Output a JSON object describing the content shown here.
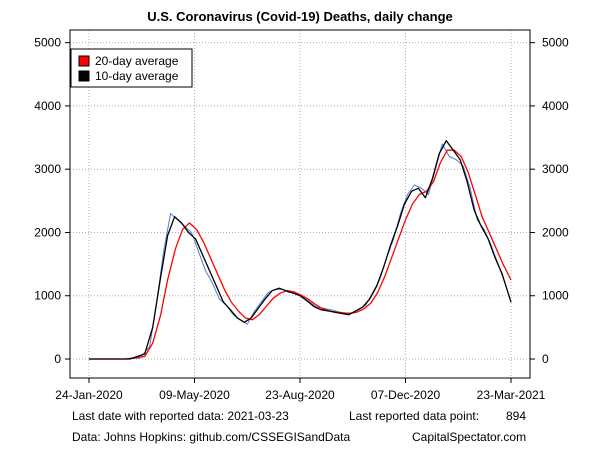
{
  "chart_data": {
    "type": "line",
    "title": "U.S. Coronavirus (Covid-19) Deaths, daily change",
    "xlabel": "",
    "ylabel": "",
    "x_range": [
      "2020-01-24",
      "2021-03-23"
    ],
    "ylim": [
      -300,
      5200
    ],
    "y_ticks": [
      0,
      1000,
      2000,
      3000,
      4000,
      5000
    ],
    "x_ticks": [
      {
        "date": "2020-01-24",
        "label": "24-Jan-2020"
      },
      {
        "date": "2020-05-09",
        "label": "09-May-2020"
      },
      {
        "date": "2020-08-23",
        "label": "23-Aug-2020"
      },
      {
        "date": "2020-12-07",
        "label": "07-Dec-2020"
      },
      {
        "date": "2021-03-23",
        "label": "23-Mar-2021"
      }
    ],
    "grid": true,
    "legend_position": "top-left",
    "legend": [
      {
        "label": "20-day average",
        "color": "#ff0000"
      },
      {
        "label": "10-day average",
        "color": "#000000"
      }
    ],
    "series": [
      {
        "name": "Daily deaths",
        "color": "#4f7fd0",
        "in_legend": false,
        "points": [
          [
            "2020-01-24",
            0
          ],
          [
            "2020-02-15",
            0
          ],
          [
            "2020-03-01",
            2
          ],
          [
            "2020-03-15",
            15
          ],
          [
            "2020-03-25",
            200
          ],
          [
            "2020-04-01",
            900
          ],
          [
            "2020-04-08",
            1700
          ],
          [
            "2020-04-15",
            2300
          ],
          [
            "2020-04-22",
            2200
          ],
          [
            "2020-04-29",
            2100
          ],
          [
            "2020-05-06",
            2000
          ],
          [
            "2020-05-13",
            1700
          ],
          [
            "2020-05-20",
            1400
          ],
          [
            "2020-05-27",
            1200
          ],
          [
            "2020-06-03",
            950
          ],
          [
            "2020-06-10",
            850
          ],
          [
            "2020-06-17",
            700
          ],
          [
            "2020-06-24",
            620
          ],
          [
            "2020-07-01",
            550
          ],
          [
            "2020-07-08",
            750
          ],
          [
            "2020-07-15",
            900
          ],
          [
            "2020-07-22",
            1050
          ],
          [
            "2020-07-29",
            1100
          ],
          [
            "2020-08-05",
            1100
          ],
          [
            "2020-08-12",
            1050
          ],
          [
            "2020-08-19",
            1050
          ],
          [
            "2020-08-26",
            980
          ],
          [
            "2020-09-02",
            900
          ],
          [
            "2020-09-09",
            820
          ],
          [
            "2020-09-16",
            800
          ],
          [
            "2020-09-23",
            780
          ],
          [
            "2020-09-30",
            750
          ],
          [
            "2020-10-07",
            720
          ],
          [
            "2020-10-14",
            730
          ],
          [
            "2020-10-21",
            780
          ],
          [
            "2020-10-28",
            850
          ],
          [
            "2020-11-04",
            1050
          ],
          [
            "2020-11-11",
            1250
          ],
          [
            "2020-11-18",
            1600
          ],
          [
            "2020-11-25",
            1900
          ],
          [
            "2020-12-02",
            2300
          ],
          [
            "2020-12-09",
            2600
          ],
          [
            "2020-12-16",
            2750
          ],
          [
            "2020-12-23",
            2700
          ],
          [
            "2020-12-30",
            2600
          ],
          [
            "2021-01-06",
            3000
          ],
          [
            "2021-01-13",
            3400
          ],
          [
            "2021-01-20",
            3200
          ],
          [
            "2021-01-27",
            3150
          ],
          [
            "2021-02-03",
            3050
          ],
          [
            "2021-02-10",
            2700
          ],
          [
            "2021-02-17",
            2200
          ],
          [
            "2021-02-24",
            2050
          ],
          [
            "2021-03-03",
            1800
          ],
          [
            "2021-03-10",
            1500
          ],
          [
            "2021-03-17",
            1200
          ],
          [
            "2021-03-23",
            894
          ]
        ]
      },
      {
        "name": "20-day average",
        "color": "#ff0000",
        "in_legend": true,
        "points": [
          [
            "2020-01-24",
            0
          ],
          [
            "2020-03-01",
            0
          ],
          [
            "2020-03-20",
            40
          ],
          [
            "2020-03-28",
            250
          ],
          [
            "2020-04-05",
            700
          ],
          [
            "2020-04-12",
            1250
          ],
          [
            "2020-04-20",
            1750
          ],
          [
            "2020-04-27",
            2050
          ],
          [
            "2020-05-04",
            2150
          ],
          [
            "2020-05-11",
            2050
          ],
          [
            "2020-05-18",
            1850
          ],
          [
            "2020-05-25",
            1600
          ],
          [
            "2020-06-01",
            1350
          ],
          [
            "2020-06-08",
            1100
          ],
          [
            "2020-06-15",
            900
          ],
          [
            "2020-06-22",
            760
          ],
          [
            "2020-06-29",
            650
          ],
          [
            "2020-07-06",
            620
          ],
          [
            "2020-07-13",
            700
          ],
          [
            "2020-07-20",
            830
          ],
          [
            "2020-07-27",
            960
          ],
          [
            "2020-08-03",
            1040
          ],
          [
            "2020-08-10",
            1080
          ],
          [
            "2020-08-17",
            1060
          ],
          [
            "2020-08-24",
            1010
          ],
          [
            "2020-08-31",
            950
          ],
          [
            "2020-09-07",
            870
          ],
          [
            "2020-09-14",
            800
          ],
          [
            "2020-09-21",
            760
          ],
          [
            "2020-09-28",
            740
          ],
          [
            "2020-10-05",
            730
          ],
          [
            "2020-10-12",
            720
          ],
          [
            "2020-10-19",
            740
          ],
          [
            "2020-10-26",
            790
          ],
          [
            "2020-11-02",
            880
          ],
          [
            "2020-11-09",
            1050
          ],
          [
            "2020-11-16",
            1300
          ],
          [
            "2020-11-23",
            1600
          ],
          [
            "2020-11-30",
            1900
          ],
          [
            "2020-12-07",
            2200
          ],
          [
            "2020-12-14",
            2450
          ],
          [
            "2020-12-21",
            2600
          ],
          [
            "2020-12-28",
            2650
          ],
          [
            "2021-01-04",
            2800
          ],
          [
            "2021-01-11",
            3100
          ],
          [
            "2021-01-18",
            3300
          ],
          [
            "2021-01-25",
            3300
          ],
          [
            "2021-02-01",
            3200
          ],
          [
            "2021-02-08",
            2950
          ],
          [
            "2021-02-15",
            2600
          ],
          [
            "2021-02-22",
            2250
          ],
          [
            "2021-03-01",
            2000
          ],
          [
            "2021-03-08",
            1750
          ],
          [
            "2021-03-15",
            1500
          ],
          [
            "2021-03-23",
            1250
          ]
        ]
      },
      {
        "name": "10-day average",
        "color": "#000000",
        "in_legend": true,
        "points": [
          [
            "2020-01-24",
            0
          ],
          [
            "2020-03-05",
            0
          ],
          [
            "2020-03-20",
            80
          ],
          [
            "2020-03-28",
            500
          ],
          [
            "2020-04-05",
            1300
          ],
          [
            "2020-04-12",
            1950
          ],
          [
            "2020-04-19",
            2250
          ],
          [
            "2020-04-26",
            2150
          ],
          [
            "2020-05-03",
            2000
          ],
          [
            "2020-05-10",
            1900
          ],
          [
            "2020-05-17",
            1650
          ],
          [
            "2020-05-24",
            1400
          ],
          [
            "2020-05-31",
            1150
          ],
          [
            "2020-06-07",
            900
          ],
          [
            "2020-06-14",
            780
          ],
          [
            "2020-06-21",
            650
          ],
          [
            "2020-06-28",
            580
          ],
          [
            "2020-07-05",
            650
          ],
          [
            "2020-07-12",
            800
          ],
          [
            "2020-07-19",
            950
          ],
          [
            "2020-07-26",
            1080
          ],
          [
            "2020-08-02",
            1120
          ],
          [
            "2020-08-09",
            1080
          ],
          [
            "2020-08-16",
            1040
          ],
          [
            "2020-08-23",
            1000
          ],
          [
            "2020-08-30",
            920
          ],
          [
            "2020-09-06",
            830
          ],
          [
            "2020-09-13",
            780
          ],
          [
            "2020-09-20",
            760
          ],
          [
            "2020-09-27",
            740
          ],
          [
            "2020-10-04",
            720
          ],
          [
            "2020-10-11",
            700
          ],
          [
            "2020-10-18",
            760
          ],
          [
            "2020-10-25",
            820
          ],
          [
            "2020-11-01",
            950
          ],
          [
            "2020-11-08",
            1150
          ],
          [
            "2020-11-15",
            1450
          ],
          [
            "2020-11-22",
            1800
          ],
          [
            "2020-11-29",
            2100
          ],
          [
            "2020-12-06",
            2450
          ],
          [
            "2020-12-13",
            2650
          ],
          [
            "2020-12-20",
            2700
          ],
          [
            "2020-12-27",
            2550
          ],
          [
            "2021-01-03",
            2850
          ],
          [
            "2021-01-10",
            3250
          ],
          [
            "2021-01-17",
            3450
          ],
          [
            "2021-01-24",
            3300
          ],
          [
            "2021-01-31",
            3150
          ],
          [
            "2021-02-07",
            2800
          ],
          [
            "2021-02-14",
            2350
          ],
          [
            "2021-02-21",
            2100
          ],
          [
            "2021-02-28",
            1900
          ],
          [
            "2021-03-07",
            1600
          ],
          [
            "2021-03-14",
            1350
          ],
          [
            "2021-03-23",
            900
          ]
        ]
      }
    ]
  },
  "footer": {
    "last_date_label": "Last date with reported data:  2021-03-23",
    "last_point_label": "Last reported data point:",
    "last_point_value": "894",
    "source": "Data: Johns Hopkins: github.com/CSSEGISandData",
    "brand": "CapitalSpectator.com"
  },
  "colors": {
    "frame": "#000000",
    "grid": "#b0b0b0",
    "background": "#ffffff"
  }
}
